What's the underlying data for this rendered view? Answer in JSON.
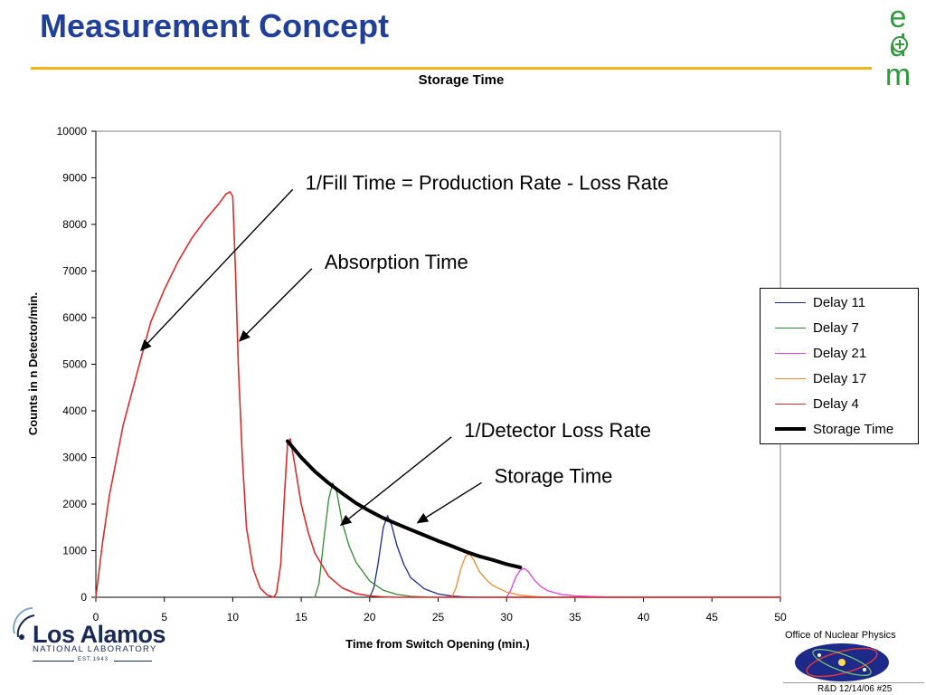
{
  "slide": {
    "title": "Measurement Concept",
    "logo_letters": [
      "e",
      "d",
      "m"
    ],
    "lanl_name": "Los Alamos",
    "lanl_sub": "NATIONAL LABORATORY",
    "lanl_est": "EST.1943",
    "onp_label": "Office of Nuclear Physics",
    "footer": "R&D 12/14/06  #25"
  },
  "chart_data": {
    "type": "line",
    "title": "Storage Time",
    "xlabel": "Time from Switch Opening (min.)",
    "ylabel": "Counts in n Detector/min.",
    "xlim": [
      0,
      50
    ],
    "ylim": [
      0,
      10000
    ],
    "xticks": [
      "0",
      "5",
      "10",
      "15",
      "20",
      "25",
      "30",
      "35",
      "40",
      "45",
      "50"
    ],
    "yticks": [
      "0",
      "1000",
      "2000",
      "3000",
      "4000",
      "5000",
      "6000",
      "7000",
      "8000",
      "9000",
      "10000"
    ],
    "grid": false,
    "legend_position": "right",
    "series": [
      {
        "name": "Delay 11",
        "color": "#1a2a8c",
        "width": 1.3,
        "points": [
          [
            20,
            0
          ],
          [
            20.3,
            200
          ],
          [
            20.6,
            700
          ],
          [
            21,
            1500
          ],
          [
            21.3,
            1750
          ],
          [
            21.6,
            1550
          ],
          [
            22,
            1100
          ],
          [
            22.5,
            700
          ],
          [
            23,
            420
          ],
          [
            24,
            180
          ],
          [
            25,
            70
          ],
          [
            26,
            25
          ],
          [
            27,
            5
          ],
          [
            28,
            0
          ],
          [
            50,
            0
          ]
        ]
      },
      {
        "name": "Delay 7",
        "color": "#2f8a2f",
        "width": 1.3,
        "points": [
          [
            16,
            0
          ],
          [
            16.3,
            300
          ],
          [
            16.6,
            1100
          ],
          [
            17,
            2100
          ],
          [
            17.3,
            2450
          ],
          [
            17.6,
            2250
          ],
          [
            18,
            1600
          ],
          [
            18.5,
            1100
          ],
          [
            19,
            750
          ],
          [
            20,
            350
          ],
          [
            21,
            150
          ],
          [
            22,
            60
          ],
          [
            23,
            20
          ],
          [
            24,
            5
          ],
          [
            25,
            0
          ],
          [
            50,
            0
          ]
        ]
      },
      {
        "name": "Delay 21",
        "color": "#e23fe3",
        "width": 1.3,
        "points": [
          [
            30,
            0
          ],
          [
            30.3,
            150
          ],
          [
            30.7,
            450
          ],
          [
            31,
            580
          ],
          [
            31.3,
            620
          ],
          [
            31.6,
            550
          ],
          [
            32,
            380
          ],
          [
            32.5,
            230
          ],
          [
            33,
            140
          ],
          [
            34,
            60
          ],
          [
            35,
            30
          ],
          [
            36,
            20
          ],
          [
            37,
            10
          ],
          [
            38,
            0
          ],
          [
            50,
            0
          ]
        ]
      },
      {
        "name": "Delay 17",
        "color": "#f28a2e",
        "width": 1.3,
        "points": [
          [
            26,
            0
          ],
          [
            26.3,
            200
          ],
          [
            26.7,
            650
          ],
          [
            27,
            880
          ],
          [
            27.3,
            930
          ],
          [
            27.6,
            800
          ],
          [
            28,
            560
          ],
          [
            28.5,
            380
          ],
          [
            29,
            250
          ],
          [
            30,
            110
          ],
          [
            31,
            45
          ],
          [
            32,
            15
          ],
          [
            33,
            0
          ],
          [
            50,
            0
          ]
        ]
      },
      {
        "name": "Delay 4",
        "color": "#e02b2b",
        "width": 1.6,
        "points": [
          [
            0,
            0
          ],
          [
            0.5,
            1200
          ],
          [
            1,
            2200
          ],
          [
            2,
            3700
          ],
          [
            3,
            4800
          ],
          [
            4,
            5900
          ],
          [
            5,
            6600
          ],
          [
            6,
            7200
          ],
          [
            7,
            7700
          ],
          [
            8,
            8100
          ],
          [
            9,
            8450
          ],
          [
            9.5,
            8650
          ],
          [
            9.8,
            8700
          ],
          [
            10,
            8600
          ],
          [
            10.2,
            7000
          ],
          [
            10.4,
            5000
          ],
          [
            10.7,
            3000
          ],
          [
            11,
            1500
          ],
          [
            11.5,
            600
          ],
          [
            12,
            200
          ],
          [
            12.5,
            50
          ],
          [
            13,
            0
          ],
          [
            13.2,
            100
          ],
          [
            13.5,
            700
          ],
          [
            13.8,
            2300
          ],
          [
            14,
            3300
          ],
          [
            14.2,
            3400
          ],
          [
            14.5,
            2900
          ],
          [
            15,
            2000
          ],
          [
            15.5,
            1400
          ],
          [
            16,
            950
          ],
          [
            17,
            450
          ],
          [
            18,
            200
          ],
          [
            19,
            80
          ],
          [
            20,
            30
          ],
          [
            21,
            10
          ],
          [
            22,
            0
          ],
          [
            50,
            0
          ]
        ]
      },
      {
        "name": "Storage Time",
        "color": "#000000",
        "width": 4,
        "points": [
          [
            14,
            3350
          ],
          [
            15,
            3000
          ],
          [
            16,
            2700
          ],
          [
            17,
            2450
          ],
          [
            18,
            2230
          ],
          [
            19,
            2020
          ],
          [
            20,
            1850
          ],
          [
            21,
            1700
          ],
          [
            22,
            1570
          ],
          [
            23,
            1450
          ],
          [
            24,
            1330
          ],
          [
            25,
            1210
          ],
          [
            26,
            1100
          ],
          [
            27,
            980
          ],
          [
            28,
            880
          ],
          [
            29,
            800
          ],
          [
            30,
            710
          ],
          [
            31,
            640
          ]
        ]
      }
    ],
    "annotations": [
      {
        "text": "1/Fill Time = Production Rate - Loss Rate",
        "x": 15.3,
        "y": 8750,
        "arrow_to": [
          3.3,
          5300
        ]
      },
      {
        "text": "Absorption Time",
        "x": 16.7,
        "y": 7050,
        "arrow_to": [
          10.5,
          5500
        ]
      },
      {
        "text": "1/Detector Loss Rate",
        "x": 26.9,
        "y": 3440,
        "arrow_to": [
          17.9,
          1550
        ]
      },
      {
        "text": "Storage Time",
        "x": 29.1,
        "y": 2460,
        "arrow_to": [
          23.5,
          1600
        ]
      }
    ]
  }
}
